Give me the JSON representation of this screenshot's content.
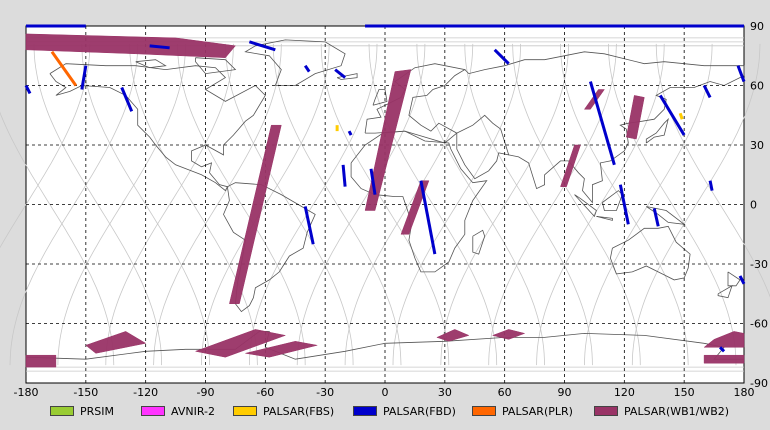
{
  "chart_data": {
    "type": "map",
    "x_axis": {
      "ticks": [
        "-180",
        "-150",
        "-120",
        "-90",
        "-60",
        "-30",
        "0",
        "30",
        "60",
        "90",
        "120",
        "150",
        "180"
      ],
      "range": [
        -180,
        180
      ]
    },
    "y_axis": {
      "ticks": [
        "90",
        "60",
        "30",
        "0",
        "-30",
        "-60",
        "-90"
      ],
      "range": [
        -90,
        90
      ],
      "side": "right"
    },
    "grid": true,
    "legend": {
      "position": "bottom",
      "items": [
        {
          "label": "PRSIM",
          "color": "#99cc33"
        },
        {
          "label": "AVNIR-2",
          "color": "#ff33ff"
        },
        {
          "label": "PALSAR(FBS)",
          "color": "#ffcc00"
        },
        {
          "label": "PALSAR(FBD)",
          "color": "#0000cc"
        },
        {
          "label": "PALSAR(PLR)",
          "color": "#ff6600"
        },
        {
          "label": "PALSAR(WB1/WB2)",
          "color": "#993366"
        }
      ]
    },
    "swaths": [
      {
        "sensor": "PALSAR(WB1/WB2)",
        "polygon": [
          [
            -180,
            86
          ],
          [
            -105,
            84
          ],
          [
            -75,
            80
          ],
          [
            -80,
            74
          ],
          [
            -125,
            76
          ],
          [
            -180,
            78
          ]
        ]
      },
      {
        "sensor": "PALSAR(WB1/WB2)",
        "polygon": [
          [
            -57,
            40
          ],
          [
            -52,
            40
          ],
          [
            -73,
            -50
          ],
          [
            -78,
            -50
          ]
        ]
      },
      {
        "sensor": "PALSAR(WB1/WB2)",
        "polygon": [
          [
            5,
            67
          ],
          [
            13,
            68
          ],
          [
            -5,
            -3
          ],
          [
            -10,
            -3
          ]
        ]
      },
      {
        "sensor": "PALSAR(WB1/WB2)",
        "polygon": [
          [
            18,
            12
          ],
          [
            22,
            12
          ],
          [
            12,
            -15
          ],
          [
            8,
            -15
          ]
        ]
      },
      {
        "sensor": "PALSAR(WB1/WB2)",
        "polygon": [
          [
            95,
            30
          ],
          [
            98,
            30
          ],
          [
            91,
            9
          ],
          [
            88,
            9
          ]
        ]
      },
      {
        "sensor": "PALSAR(WB1/WB2)",
        "polygon": [
          [
            107,
            58
          ],
          [
            110,
            58
          ],
          [
            103,
            48
          ],
          [
            100,
            48
          ]
        ]
      },
      {
        "sensor": "PALSAR(WB1/WB2)",
        "polygon": [
          [
            125,
            55
          ],
          [
            130,
            54
          ],
          [
            126,
            33
          ],
          [
            121,
            34
          ]
        ]
      },
      {
        "sensor": "PALSAR(WB1/WB2)",
        "polygon": [
          [
            -180,
            -76
          ],
          [
            -165,
            -76
          ],
          [
            -165,
            -82
          ],
          [
            -180,
            -82
          ]
        ]
      },
      {
        "sensor": "PALSAR(WB1/WB2)",
        "polygon": [
          [
            -130,
            -64
          ],
          [
            -120,
            -70
          ],
          [
            -145,
            -75
          ],
          [
            -150,
            -71
          ]
        ]
      },
      {
        "sensor": "PALSAR(WB1/WB2)",
        "polygon": [
          [
            -65,
            -63
          ],
          [
            -50,
            -66
          ],
          [
            -80,
            -77
          ],
          [
            -95,
            -74
          ]
        ]
      },
      {
        "sensor": "PALSAR(WB1/WB2)",
        "polygon": [
          [
            -45,
            -69
          ],
          [
            -34,
            -71
          ],
          [
            -58,
            -77
          ],
          [
            -70,
            -75
          ]
        ]
      },
      {
        "sensor": "PALSAR(WB1/WB2)",
        "polygon": [
          [
            35,
            -63
          ],
          [
            42,
            -66
          ],
          [
            32,
            -69
          ],
          [
            26,
            -67
          ]
        ]
      },
      {
        "sensor": "PALSAR(WB1/WB2)",
        "polygon": [
          [
            62,
            -63
          ],
          [
            70,
            -65
          ],
          [
            62,
            -68
          ],
          [
            54,
            -66
          ]
        ]
      },
      {
        "sensor": "PALSAR(WB1/WB2)",
        "polygon": [
          [
            175,
            -64
          ],
          [
            180,
            -65
          ],
          [
            180,
            -72
          ],
          [
            160,
            -72
          ],
          [
            165,
            -68
          ]
        ]
      },
      {
        "sensor": "PALSAR(WB1/WB2)",
        "polygon": [
          [
            160,
            -76
          ],
          [
            180,
            -76
          ],
          [
            180,
            -80
          ],
          [
            160,
            -80
          ]
        ]
      },
      {
        "sensor": "PALSAR(FBD)",
        "line": [
          [
            -180,
            90
          ],
          [
            -150,
            90
          ]
        ]
      },
      {
        "sensor": "PALSAR(FBD)",
        "line": [
          [
            -10,
            90
          ],
          [
            180,
            90
          ]
        ]
      },
      {
        "sensor": "PALSAR(FBD)",
        "line": [
          [
            -150,
            70
          ],
          [
            -152,
            58
          ]
        ]
      },
      {
        "sensor": "PALSAR(FBD)",
        "line": [
          [
            -132,
            59
          ],
          [
            -127,
            47
          ]
        ]
      },
      {
        "sensor": "PALSAR(FBD)",
        "line": [
          [
            -118,
            80
          ],
          [
            -108,
            79
          ]
        ]
      },
      {
        "sensor": "PALSAR(FBD)",
        "line": [
          [
            -68,
            82
          ],
          [
            -55,
            78
          ]
        ]
      },
      {
        "sensor": "PALSAR(FBD)",
        "line": [
          [
            -25,
            68
          ],
          [
            -20,
            64
          ]
        ]
      },
      {
        "sensor": "PALSAR(FBD)",
        "line": [
          [
            -40,
            70
          ],
          [
            -38,
            67
          ]
        ]
      },
      {
        "sensor": "PALSAR(FBD)",
        "line": [
          [
            55,
            78
          ],
          [
            62,
            71
          ]
        ]
      },
      {
        "sensor": "PALSAR(FBD)",
        "line": [
          [
            -21,
            20
          ],
          [
            -20,
            9
          ]
        ]
      },
      {
        "sensor": "PALSAR(FBD)",
        "line": [
          [
            -7,
            18
          ],
          [
            -5,
            5
          ]
        ]
      },
      {
        "sensor": "PALSAR(FBD)",
        "line": [
          [
            -40,
            -1
          ],
          [
            -36,
            -20
          ]
        ]
      },
      {
        "sensor": "PALSAR(FBD)",
        "line": [
          [
            -18,
            37
          ],
          [
            -17,
            35
          ]
        ]
      },
      {
        "sensor": "PALSAR(FBD)",
        "line": [
          [
            18,
            12
          ],
          [
            25,
            -25
          ]
        ]
      },
      {
        "sensor": "PALSAR(FBD)",
        "line": [
          [
            103,
            62
          ],
          [
            115,
            20
          ]
        ]
      },
      {
        "sensor": "PALSAR(FBD)",
        "line": [
          [
            138,
            55
          ],
          [
            150,
            35
          ]
        ]
      },
      {
        "sensor": "PALSAR(FBD)",
        "line": [
          [
            118,
            10
          ],
          [
            122,
            -10
          ]
        ]
      },
      {
        "sensor": "PALSAR(FBD)",
        "line": [
          [
            135,
            -2
          ],
          [
            137,
            -11
          ]
        ]
      },
      {
        "sensor": "PALSAR(FBD)",
        "line": [
          [
            163,
            12
          ],
          [
            164,
            7
          ]
        ]
      },
      {
        "sensor": "PALSAR(FBD)",
        "line": [
          [
            160,
            60
          ],
          [
            163,
            54
          ]
        ]
      },
      {
        "sensor": "PALSAR(FBD)",
        "line": [
          [
            177,
            70
          ],
          [
            180,
            62
          ]
        ]
      },
      {
        "sensor": "PALSAR(FBD)",
        "line": [
          [
            178,
            -36
          ],
          [
            180,
            -40
          ]
        ]
      },
      {
        "sensor": "PALSAR(FBD)",
        "line": [
          [
            168,
            -72
          ],
          [
            170,
            -74
          ]
        ]
      },
      {
        "sensor": "PALSAR(FBD)",
        "line": [
          [
            -180,
            60
          ],
          [
            -178,
            56
          ]
        ]
      },
      {
        "sensor": "PALSAR(FBS)",
        "line": [
          [
            -24,
            40
          ],
          [
            -24,
            37
          ]
        ]
      },
      {
        "sensor": "PALSAR(FBS)",
        "line": [
          [
            148,
            46
          ],
          [
            149,
            43
          ]
        ]
      },
      {
        "sensor": "PALSAR(PLR)",
        "line": [
          [
            -167,
            77
          ],
          [
            -155,
            60
          ]
        ]
      }
    ]
  }
}
